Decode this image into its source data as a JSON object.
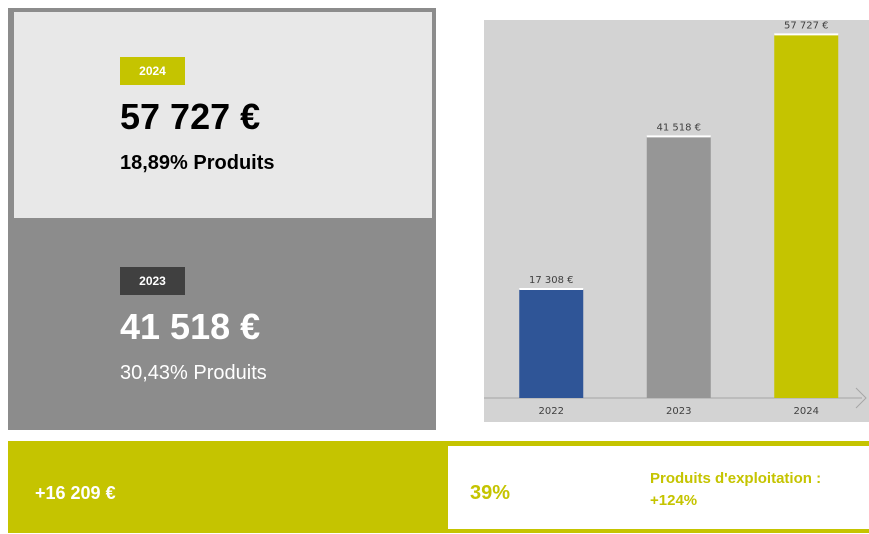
{
  "cards": [
    {
      "year": "2024",
      "amount": "57 727 €",
      "share": "18,89% Produits"
    },
    {
      "year": "2023",
      "amount": "41 518 €",
      "share": "30,43% Produits"
    }
  ],
  "footer": {
    "difference": "+16 209 €",
    "growth": "39%",
    "note": "Produits d'exploitation : +124%"
  },
  "chart_data": {
    "type": "bar",
    "categories": [
      "2022",
      "2023",
      "2024"
    ],
    "values": [
      17308,
      41518,
      57727
    ],
    "value_labels": [
      "17 308 €",
      "41 518 €",
      "57 727 €"
    ],
    "colors": [
      "#2f5597",
      "#969696",
      "#c5c400"
    ],
    "ylim": [
      0,
      60000
    ]
  }
}
